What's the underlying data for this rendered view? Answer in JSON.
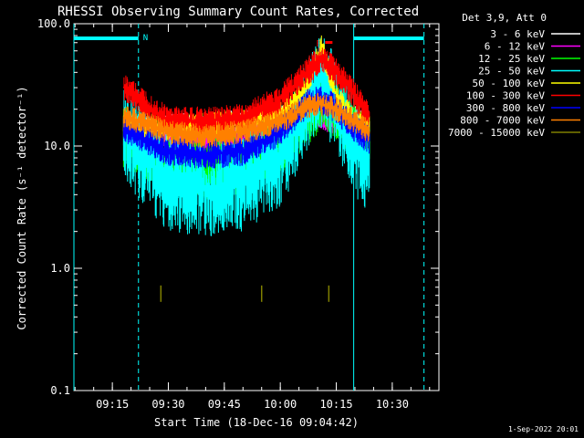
{
  "chart_data": {
    "type": "line",
    "title": "RHESSI Observing Summary Count Rates, Corrected",
    "xlabel": "Start Time (18-Dec-16 09:04:42)",
    "ylabel": "Corrected Count Rate (s⁻¹ detector⁻¹)",
    "yscale": "log",
    "ylim": [
      0.1,
      100.0
    ],
    "xlim": [
      "09:04:42",
      "10:42:30"
    ],
    "xticks": [
      "09:15",
      "09:30",
      "09:45",
      "10:00",
      "10:15",
      "10:30"
    ],
    "yticks": [
      "0.1",
      "1.0",
      "10.0",
      "100.0"
    ],
    "legend_title": "Det 3,9, Att 0",
    "legend_position": "top-right outside",
    "grid": false,
    "flags": [
      "N",
      "F"
    ],
    "timestamp": "1-Sep-2022 20:01",
    "series": [
      {
        "name": "3 - 6 keV",
        "color": "#ffffff",
        "x": [
          "09:18",
          "09:22",
          "09:30",
          "09:40",
          "09:50",
          "10:00",
          "10:07",
          "10:11",
          "10:15",
          "10:20",
          "10:24"
        ],
        "y": [
          15,
          14,
          15,
          15,
          16,
          17,
          19,
          21,
          19,
          17,
          15
        ]
      },
      {
        "name": "6 - 12 keV",
        "color": "#ff00ff",
        "x": [
          "09:18",
          "09:22",
          "09:30",
          "09:40",
          "09:50",
          "10:00",
          "10:07",
          "10:11",
          "10:15",
          "10:20",
          "10:24"
        ],
        "y": [
          13,
          12,
          11,
          11,
          11,
          13,
          17,
          18,
          16,
          14,
          12
        ]
      },
      {
        "name": "12 - 25 keV",
        "color": "#00ff00",
        "x": [
          "09:18",
          "09:22",
          "09:30",
          "09:40",
          "09:50",
          "10:00",
          "10:07",
          "10:11",
          "10:15",
          "10:20",
          "10:24"
        ],
        "y": [
          12,
          10,
          7,
          6.5,
          7,
          10,
          18,
          24,
          20,
          14,
          11
        ]
      },
      {
        "name": "25 - 50 keV",
        "color": "#00ffff",
        "x": [
          "09:18",
          "09:22",
          "09:30",
          "09:40",
          "09:50",
          "10:00",
          "10:07",
          "10:11",
          "10:15",
          "10:20",
          "10:24"
        ],
        "y": [
          13,
          9,
          5,
          4.5,
          5,
          8,
          20,
          35,
          22,
          10,
          6
        ]
      },
      {
        "name": "50 - 100 keV",
        "color": "#ffff00",
        "x": [
          "09:18",
          "09:22",
          "09:30",
          "09:40",
          "09:50",
          "10:00",
          "10:07",
          "10:11",
          "10:15",
          "10:20",
          "10:24"
        ],
        "y": [
          16,
          14,
          14,
          15,
          16,
          18,
          30,
          65,
          25,
          16,
          14
        ]
      },
      {
        "name": "100 - 300 keV",
        "color": "#ff0000",
        "x": [
          "09:18",
          "09:22",
          "09:30",
          "09:40",
          "09:50",
          "10:00",
          "10:07",
          "10:11",
          "10:15",
          "10:20",
          "10:24"
        ],
        "y": [
          30,
          24,
          16,
          16,
          17,
          24,
          40,
          52,
          40,
          26,
          17
        ]
      },
      {
        "name": "300 - 800 keV",
        "color": "#0000ff",
        "x": [
          "09:18",
          "09:22",
          "09:30",
          "09:40",
          "09:50",
          "10:00",
          "10:07",
          "10:11",
          "10:15",
          "10:20",
          "10:24"
        ],
        "y": [
          14,
          12,
          9,
          8.5,
          9,
          13,
          22,
          24,
          20,
          14,
          11
        ]
      },
      {
        "name": "800 - 7000 keV",
        "color": "#ff8000",
        "x": [
          "09:18",
          "09:22",
          "09:30",
          "09:40",
          "09:50",
          "10:00",
          "10:07",
          "10:11",
          "10:15",
          "10:20",
          "10:24"
        ],
        "y": [
          17,
          16,
          13,
          12,
          13,
          16,
          21,
          22,
          20,
          16,
          13
        ]
      },
      {
        "name": "7000 - 15000 keV",
        "color": "#808000",
        "x": [
          "09:28",
          "09:55",
          "10:13"
        ],
        "y": [
          0.62,
          0.62,
          0.62
        ]
      }
    ]
  }
}
